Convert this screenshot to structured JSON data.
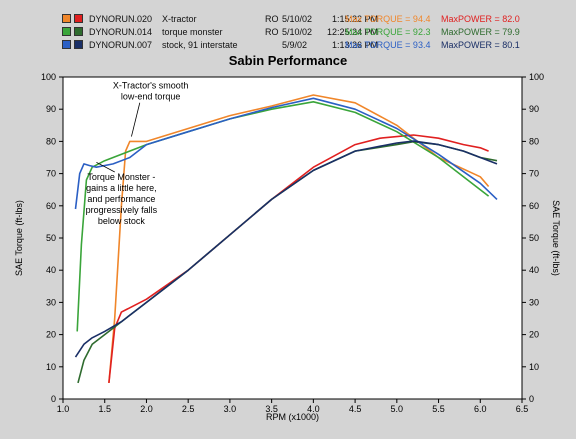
{
  "legend": [
    {
      "run": "DYNORUN.020",
      "desc": "X-tractor",
      "ro": "RO",
      "date": "5/10/02",
      "time": "1:15:22 PM",
      "maxTorque": "Max TORQUE = 94.4",
      "maxPower": "MaxPOWER = 82.0",
      "color": "#f0862a",
      "color2": "#e02020"
    },
    {
      "run": "DYNORUN.014",
      "desc": "torque monster",
      "ro": "RO",
      "date": "5/10/02",
      "time": "12:25:24 PM",
      "maxTorque": "Max TORQUE = 92.3",
      "maxPower": "MaxPOWER = 79.9",
      "color": "#3aa53a",
      "color2": "#2f6b2f"
    },
    {
      "run": "DYNORUN.007",
      "desc": "stock, 91 interstate",
      "ro": "",
      "date": "5/9/02",
      "time": "1:13:26 PM",
      "maxTorque": "Max TORQUE = 93.4",
      "maxPower": "MaxPOWER = 80.1",
      "color": "#2b5fc4",
      "color2": "#1a2f66"
    }
  ],
  "chart_data": {
    "type": "line",
    "title": "Sabin Performance",
    "xlabel": "RPM (x1000)",
    "ylabel": "SAE Torque (ft-lbs)",
    "y2label": "SAE Torque (ft-lbs)",
    "xlim": [
      1.0,
      6.5
    ],
    "ylim": [
      0,
      100
    ],
    "xticks": [
      "1.0",
      "1.5",
      "2.0",
      "2.5",
      "3.0",
      "3.5",
      "4.0",
      "4.5",
      "5.0",
      "5.5",
      "6.0",
      "6.5"
    ],
    "yticks": [
      "0",
      "10",
      "20",
      "30",
      "40",
      "50",
      "60",
      "70",
      "80",
      "90",
      "100"
    ],
    "grid": false,
    "series": [
      {
        "name": "X-tractor torque",
        "color": "#f0862a",
        "x": [
          1.55,
          1.62,
          1.7,
          1.75,
          1.8,
          2.0,
          2.5,
          3.0,
          3.5,
          4.0,
          4.5,
          5.0,
          5.5,
          6.0,
          6.1
        ],
        "y": [
          5,
          25,
          60,
          77,
          80,
          80,
          84,
          88,
          91,
          94.4,
          92,
          85,
          75,
          69,
          66
        ]
      },
      {
        "name": "X-tractor power",
        "color": "#e02020",
        "x": [
          1.55,
          1.62,
          1.7,
          2.0,
          2.5,
          3.0,
          3.5,
          4.0,
          4.5,
          4.8,
          5.0,
          5.2,
          5.5,
          5.8,
          6.0,
          6.1
        ],
        "y": [
          5,
          22,
          27,
          31,
          40,
          51,
          62,
          72,
          79,
          81,
          81.5,
          82,
          81,
          79,
          78,
          77
        ]
      },
      {
        "name": "Torque monster torque",
        "color": "#3aa53a",
        "x": [
          1.17,
          1.22,
          1.28,
          1.35,
          1.5,
          2.0,
          2.5,
          3.0,
          3.5,
          4.0,
          4.5,
          5.0,
          5.5,
          6.0,
          6.1
        ],
        "y": [
          21,
          48,
          68,
          72,
          74,
          79,
          83,
          87,
          90,
          92.3,
          89,
          83,
          75,
          65,
          63
        ]
      },
      {
        "name": "Torque monster power",
        "color": "#2f6b2f",
        "x": [
          1.18,
          1.25,
          1.35,
          1.5,
          1.7,
          2.0,
          2.5,
          3.0,
          3.5,
          4.0,
          4.5,
          5.0,
          5.2,
          5.5,
          5.8,
          6.0,
          6.2
        ],
        "y": [
          5,
          12,
          17,
          20,
          24,
          30,
          40,
          51,
          62,
          71,
          77,
          79,
          79.9,
          79,
          77,
          75,
          74
        ]
      },
      {
        "name": "Stock torque",
        "color": "#2b5fc4",
        "x": [
          1.15,
          1.2,
          1.25,
          1.32,
          1.4,
          1.6,
          1.8,
          2.0,
          2.5,
          3.0,
          3.5,
          4.0,
          4.5,
          5.0,
          5.5,
          6.0,
          6.2
        ],
        "y": [
          59,
          70,
          73,
          72.5,
          72,
          73,
          75,
          79,
          83,
          87,
          90.5,
          93.4,
          90,
          84,
          76,
          67,
          62
        ]
      },
      {
        "name": "Stock power",
        "color": "#1a2f66",
        "x": [
          1.15,
          1.25,
          1.35,
          1.5,
          1.7,
          2.0,
          2.5,
          3.0,
          3.5,
          4.0,
          4.5,
          5.0,
          5.2,
          5.5,
          5.8,
          6.0,
          6.2
        ],
        "y": [
          13,
          17,
          19,
          21,
          24,
          30,
          40,
          51,
          62,
          71,
          77,
          79.5,
          80.1,
          79,
          77,
          75,
          73
        ]
      }
    ],
    "annotations": [
      {
        "lines": [
          "X-Tractor's smooth",
          "low-end torque"
        ],
        "x": 2.05,
        "y": 96.5
      },
      {
        "lines": [
          "Torque Monster -",
          "gains a little here,",
          "and performance",
          "progressively falls",
          "below stock"
        ],
        "x": 1.7,
        "y": 68
      }
    ]
  }
}
